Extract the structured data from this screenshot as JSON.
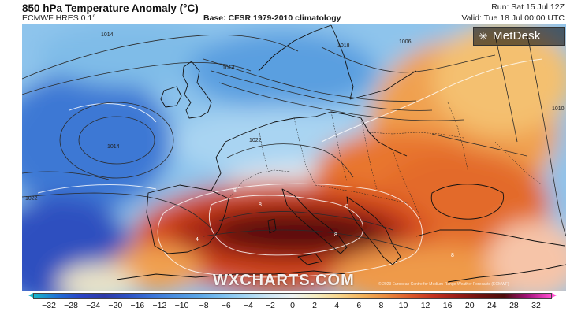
{
  "header": {
    "title": "850 hPa Temperature Anomaly (°C)",
    "model": "ECMWF HRES 0.1°",
    "base": "Base: CFSR 1979-2010 climatology",
    "run": "Run: Sat 15 Jul 12Z",
    "valid": "Valid: Tue 18 Jul 00:00 UTC"
  },
  "logo": {
    "icon": "metdesk-star-icon",
    "text": "MetDesk"
  },
  "watermark": "WXCHARTS.COM",
  "credit": "© 2023 European Centre for Medium-Range Weather Forecasts (ECMWF)",
  "map": {
    "type": "temperature-anomaly-map",
    "contour_labels": [
      "1014",
      "1014",
      "1014",
      "1006",
      "1010",
      "1022",
      "1022",
      "1018"
    ],
    "anomaly_labels": [
      "8",
      "8",
      "8",
      "4",
      "8",
      "8"
    ]
  },
  "colorbar": {
    "ticks": [
      "−32",
      "−28",
      "−24",
      "−20",
      "−16",
      "−12",
      "−10",
      "−8",
      "−6",
      "−4",
      "−2",
      "0",
      "2",
      "4",
      "6",
      "8",
      "10",
      "12",
      "16",
      "20",
      "24",
      "28",
      "32"
    ],
    "colors": [
      "#18b7c9",
      "#1e6fd6",
      "#2a44c6",
      "#2d3aa8",
      "#2c51c4",
      "#3a73d8",
      "#4a8fe0",
      "#5aa6e8",
      "#7cc0f0",
      "#a4d6f4",
      "#cfe6f4",
      "#eef3f3",
      "#f4ecc0",
      "#f7d48a",
      "#f3b25a",
      "#eb8a3d",
      "#dd5a2a",
      "#c4321f",
      "#9b1d17",
      "#6e130f",
      "#4d0c0a",
      "#a3137a",
      "#ff4fd0"
    ]
  }
}
